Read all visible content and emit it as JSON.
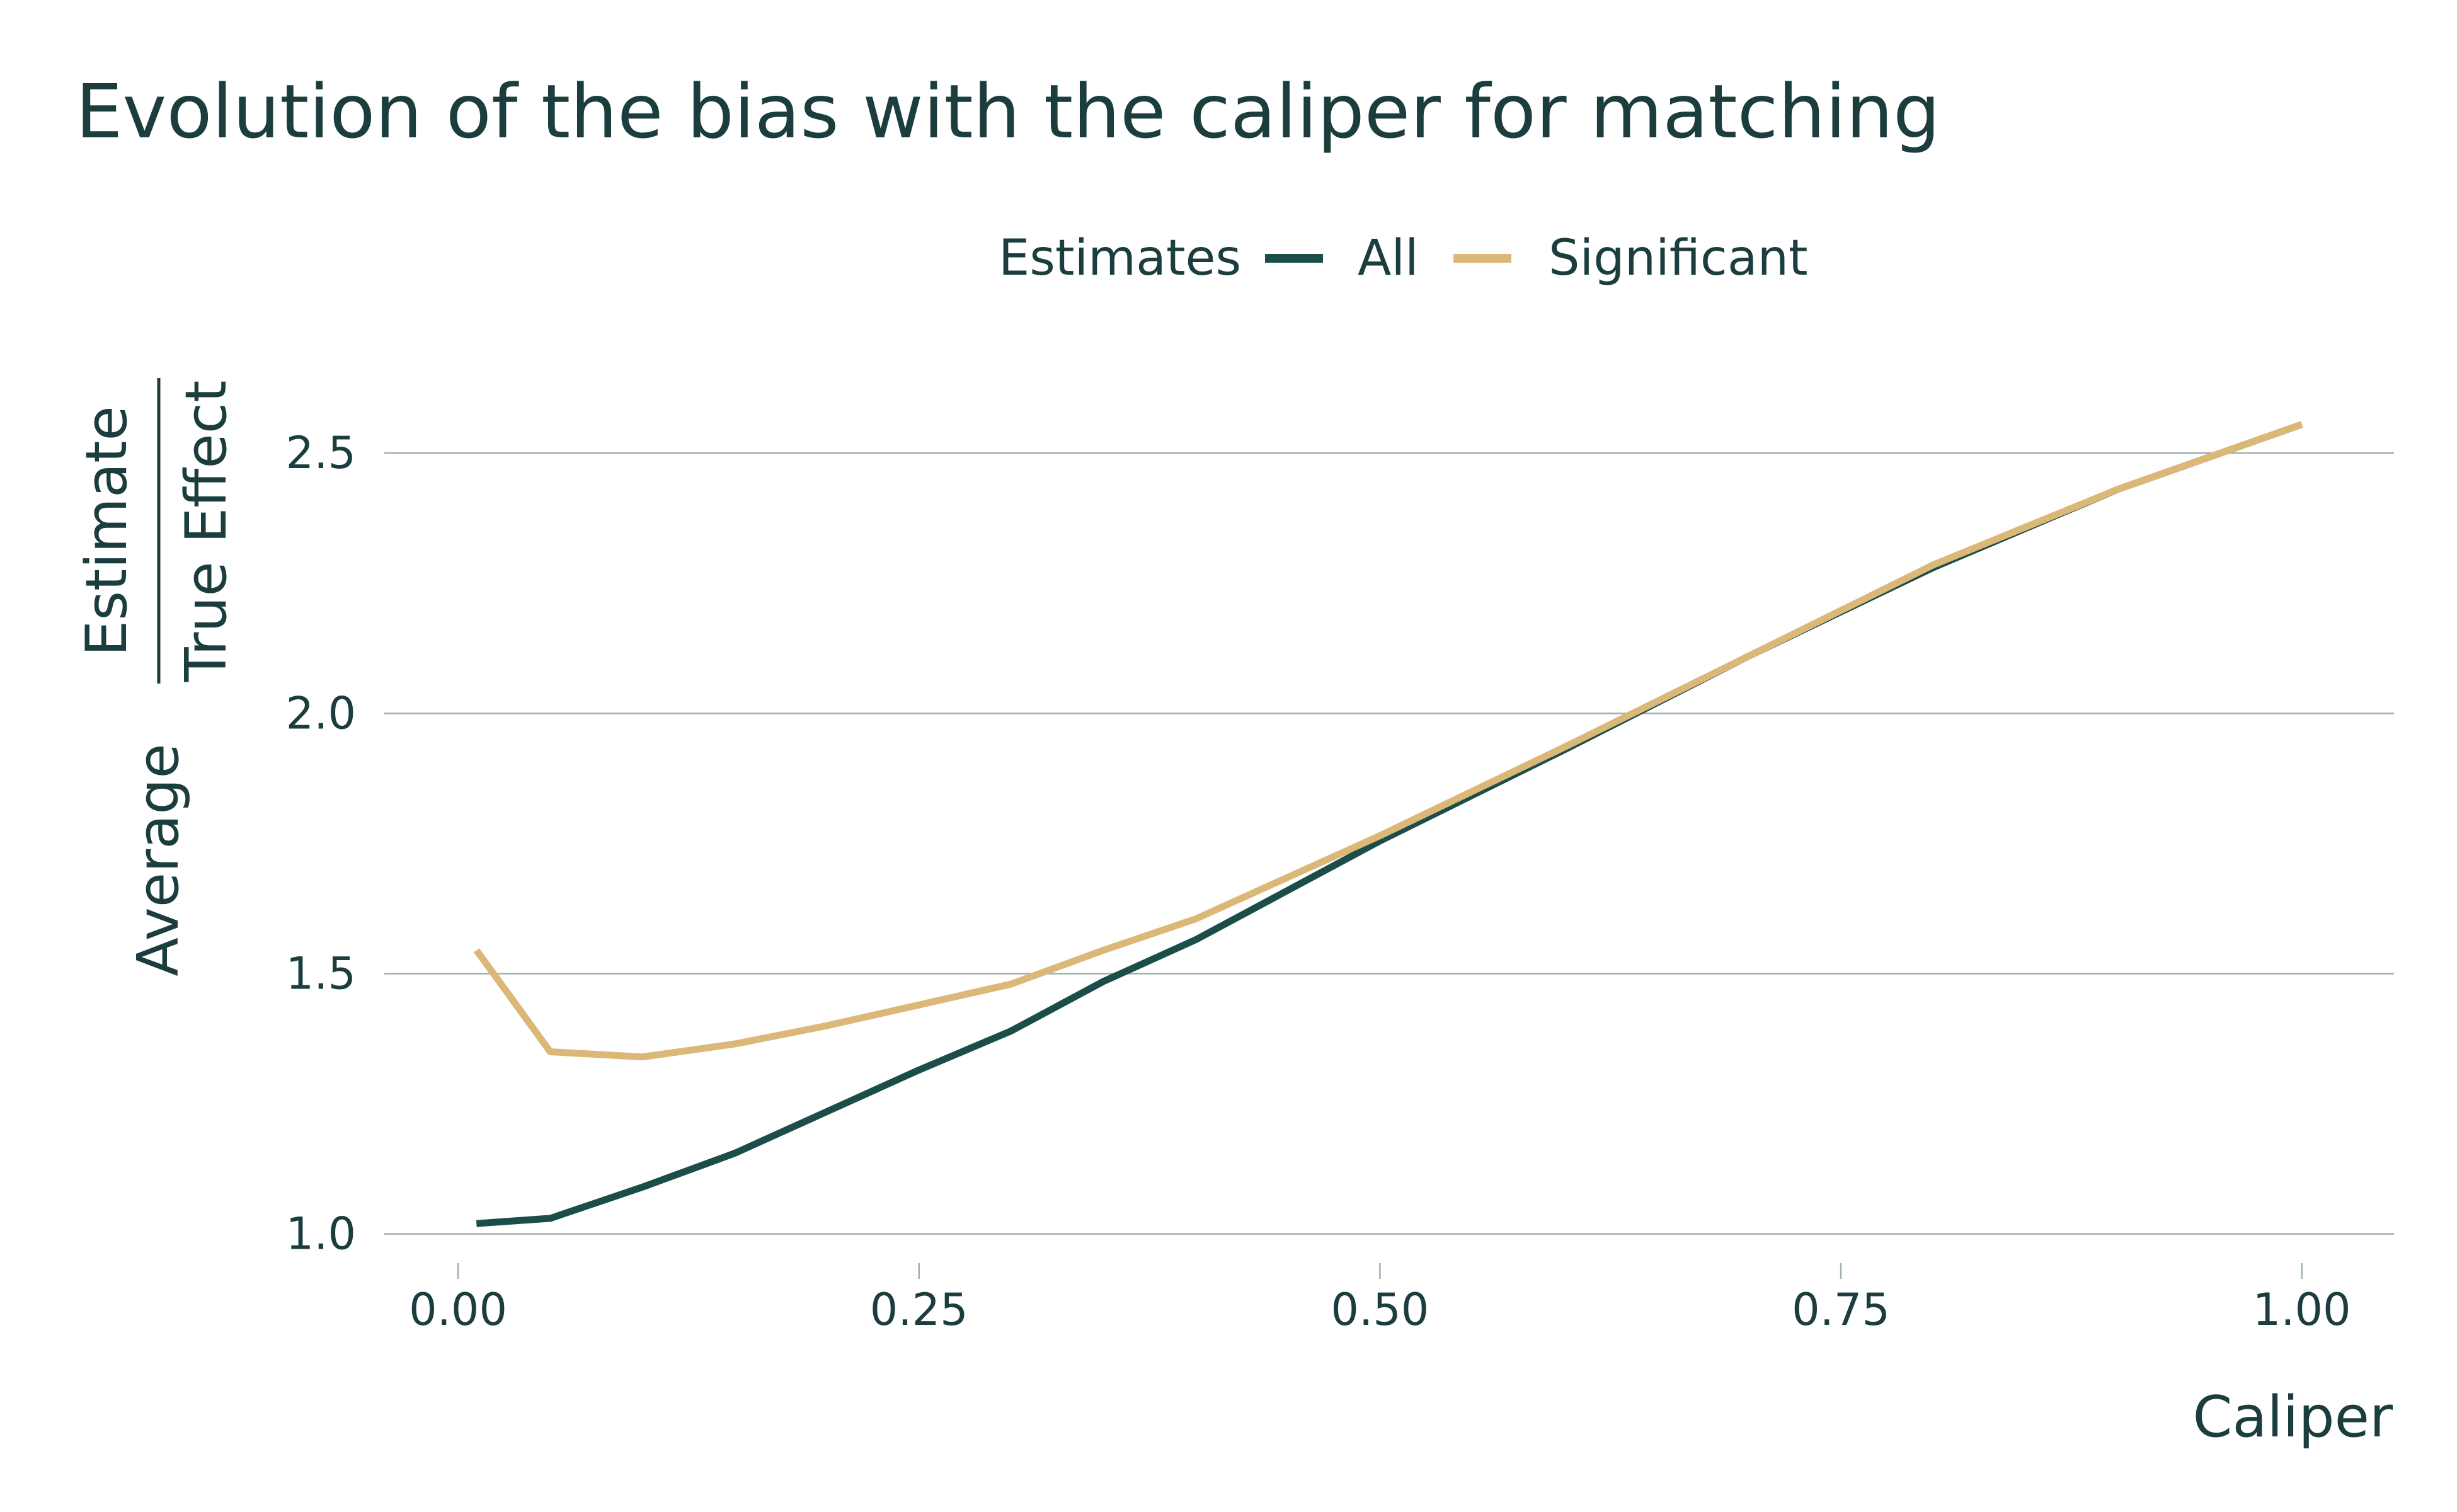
{
  "chart_data": {
    "type": "line",
    "title": "Evolution of the bias with the caliper for matching",
    "xlabel": "Caliper",
    "ylabel": {
      "prefix": "Average",
      "numerator": "Estimate",
      "denominator": "True Effect"
    },
    "legend": {
      "title": "Estimates",
      "position": "top"
    },
    "xlim": [
      -0.04,
      1.05
    ],
    "ylim": [
      0.95,
      2.62
    ],
    "xticks": [
      0.0,
      0.25,
      0.5,
      0.75,
      1.0
    ],
    "xtick_labels": [
      "0.00",
      "0.25",
      "0.50",
      "0.75",
      "1.00"
    ],
    "yticks": [
      1.0,
      1.5,
      2.0,
      2.5
    ],
    "ytick_labels": [
      "1.0",
      "1.5",
      "2.0",
      "2.5"
    ],
    "grid": {
      "horizontal": true,
      "vertical": false
    },
    "series": [
      {
        "name": "All",
        "color": "#1b4d4b",
        "x": [
          0.01,
          0.05,
          0.1,
          0.15,
          0.2,
          0.25,
          0.3,
          0.35,
          0.4,
          0.45,
          0.5,
          0.6,
          0.7,
          0.8,
          0.9,
          1.0
        ],
        "y": [
          1.02,
          1.03,
          1.09,
          1.155,
          1.235,
          1.315,
          1.39,
          1.485,
          1.565,
          1.66,
          1.755,
          1.93,
          2.11,
          2.28,
          2.43,
          2.555
        ]
      },
      {
        "name": "Significant",
        "color": "#dcb878",
        "x": [
          0.01,
          0.05,
          0.1,
          0.15,
          0.2,
          0.25,
          0.3,
          0.35,
          0.4,
          0.45,
          0.5,
          0.6,
          0.7,
          0.8,
          0.9,
          1.0
        ],
        "y": [
          1.545,
          1.35,
          1.34,
          1.365,
          1.4,
          1.44,
          1.48,
          1.545,
          1.605,
          1.685,
          1.765,
          1.935,
          2.11,
          2.285,
          2.43,
          2.555
        ]
      }
    ]
  }
}
